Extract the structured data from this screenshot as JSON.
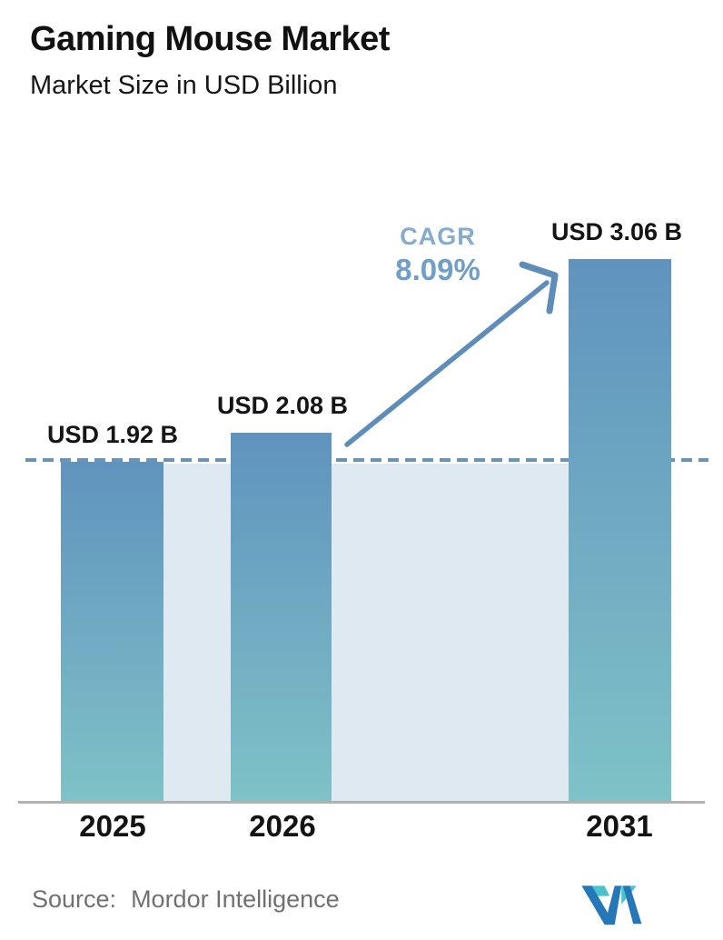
{
  "page": {
    "title": "Gaming Mouse Market",
    "subtitle": "Market Size in USD Billion"
  },
  "chart_data": {
    "type": "bar",
    "title": "Gaming Mouse Market",
    "ylabel": "Market Size in USD Billion",
    "categories": [
      "2025",
      "2026",
      "2031"
    ],
    "values": [
      1.92,
      2.08,
      3.06
    ],
    "value_labels": [
      "USD 1.92 B",
      "USD 2.08 B",
      "USD 3.06 B"
    ],
    "unit": "USD Billion",
    "ylim": [
      0,
      3.3
    ],
    "grid": false,
    "baseline_value": 1.92,
    "annotation": {
      "label": "CAGR",
      "value": "8.09%"
    },
    "legend": "none"
  },
  "annotation": {
    "cagr_label": "CAGR",
    "cagr_value": "8.09%"
  },
  "footer": {
    "source_label": "Source:",
    "source_name": "Mordor Intelligence",
    "logo": "mordor-intelligence-logo"
  },
  "colors": {
    "bar_gradient_top": "#6093be",
    "bar_gradient_bottom": "#7fc2c7",
    "baseline_area": "#dfe9f1",
    "dashed_line": "#6a93b6",
    "arrow": "#5e8db9",
    "cagr_label": "#85abce",
    "cagr_value": "#6f9ec7",
    "axis_line": "#b1b1b1",
    "text_dark": "#131313",
    "source_text": "#707070",
    "logo_teal": "#4ac2cc",
    "logo_blue": "#2577b8"
  }
}
